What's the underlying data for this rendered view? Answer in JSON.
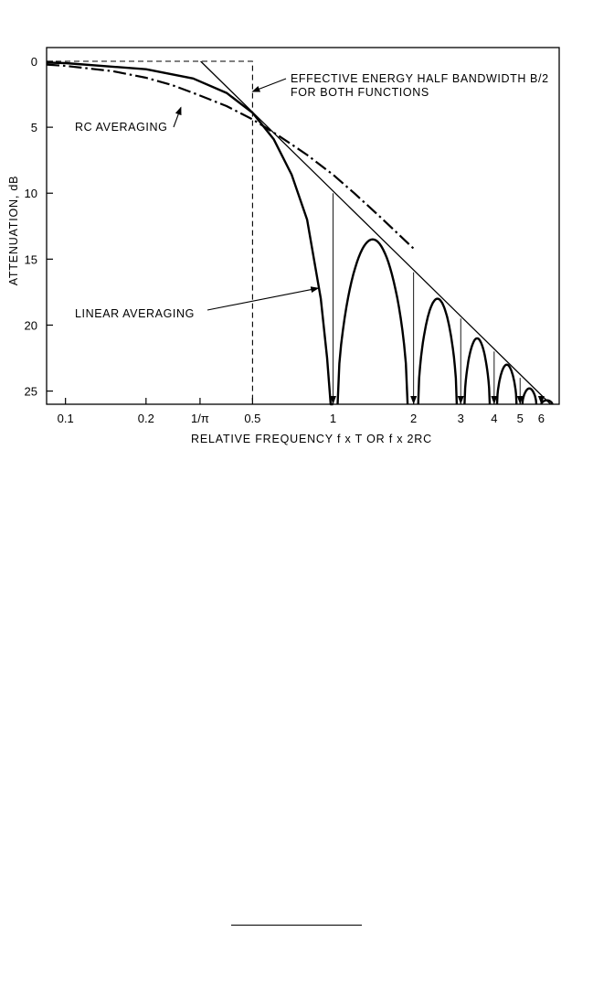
{
  "chart_data": {
    "type": "line",
    "xscale": "log",
    "xlim": [
      0.085,
      7.0
    ],
    "ylim": [
      0,
      26
    ],
    "y_inverted": true,
    "xlabel": "RELATIVE FREQUENCY f x T OR f x 2RC",
    "ylabel": "ATTENUATION, dB",
    "x_ticks": [
      {
        "value": 0.1,
        "label": "0.1"
      },
      {
        "value": 0.2,
        "label": "0.2"
      },
      {
        "value": 0.3183,
        "label": "1/π"
      },
      {
        "value": 0.5,
        "label": "0.5"
      },
      {
        "value": 1,
        "label": "1"
      },
      {
        "value": 2,
        "label": "2"
      },
      {
        "value": 3,
        "label": "3"
      },
      {
        "value": 4,
        "label": "4"
      },
      {
        "value": 5,
        "label": "5"
      },
      {
        "value": 6,
        "label": "6"
      }
    ],
    "y_ticks": [
      {
        "value": 0,
        "label": "0"
      },
      {
        "value": 5,
        "label": "5"
      },
      {
        "value": 10,
        "label": "10"
      },
      {
        "value": 15,
        "label": "15"
      },
      {
        "value": 20,
        "label": "20"
      },
      {
        "value": 25,
        "label": "25"
      }
    ],
    "series": [
      {
        "name": "RC AVERAGING",
        "style": "dash-dot",
        "x": [
          0.085,
          0.1,
          0.15,
          0.2,
          0.25,
          0.3,
          0.3183,
          0.4,
          0.5,
          0.6,
          0.7,
          0.8,
          1.0,
          1.2,
          1.5,
          2.0
        ],
        "y": [
          0.25,
          0.35,
          0.75,
          1.25,
          1.8,
          2.4,
          2.6,
          3.4,
          4.4,
          5.4,
          6.3,
          7.1,
          8.6,
          10.0,
          11.8,
          14.2
        ]
      },
      {
        "name": "LINEAR AVERAGING",
        "style": "solid",
        "x": [
          0.085,
          0.1,
          0.2,
          0.3,
          0.4,
          0.5,
          0.6,
          0.7,
          0.8,
          0.9,
          0.95,
          0.98,
          1.0
        ],
        "y": [
          0.1,
          0.14,
          0.6,
          1.3,
          2.4,
          3.9,
          5.9,
          8.6,
          12.0,
          18.0,
          22.5,
          26.0,
          26.0
        ]
      },
      {
        "name": "",
        "style": "solid",
        "role": "asymptote",
        "x": [
          0.32,
          6.5
        ],
        "y": [
          0,
          26
        ]
      },
      {
        "name": "",
        "style": "dashed",
        "role": "effective-bandwidth",
        "x": [
          0.085,
          0.5,
          0.5
        ],
        "y": [
          0,
          0,
          26
        ]
      }
    ],
    "sidelobes": [
      {
        "start": 1.04,
        "end": 1.9,
        "peak_x": 1.43,
        "peak_y": 13.5
      },
      {
        "start": 2.08,
        "end": 2.9,
        "peak_x": 2.46,
        "peak_y": 18.0
      },
      {
        "start": 3.1,
        "end": 3.85,
        "peak_x": 3.47,
        "peak_y": 21.0
      },
      {
        "start": 4.1,
        "end": 4.85,
        "peak_x": 4.47,
        "peak_y": 23.0
      },
      {
        "start": 5.1,
        "end": 5.75,
        "peak_x": 5.46,
        "peak_y": 24.8
      },
      {
        "start": 6.0,
        "end": 6.6,
        "peak_x": 6.3,
        "peak_y": 25.7
      }
    ],
    "nulls": [
      {
        "x": 1,
        "from_y": 10
      },
      {
        "x": 2,
        "from_y": 16
      },
      {
        "x": 3,
        "from_y": 19.5
      },
      {
        "x": 4,
        "from_y": 22
      },
      {
        "x": 5,
        "from_y": 24
      },
      {
        "x": 6,
        "from_y": 25.5
      }
    ],
    "annotations": [
      {
        "lines": [
          "EFFECTIVE ENERGY HALF BANDWIDTH B/2",
          "FOR BOTH FUNCTIONS"
        ],
        "points_to": {
          "x": 0.5,
          "y": 2.3
        }
      },
      {
        "lines": [
          "RC AVERAGING"
        ],
        "points_to": {
          "x": 0.27,
          "y": 3.5
        }
      },
      {
        "lines": [
          "LINEAR AVERAGING"
        ],
        "points_to": {
          "x": 0.88,
          "y": 17.2
        }
      }
    ]
  }
}
